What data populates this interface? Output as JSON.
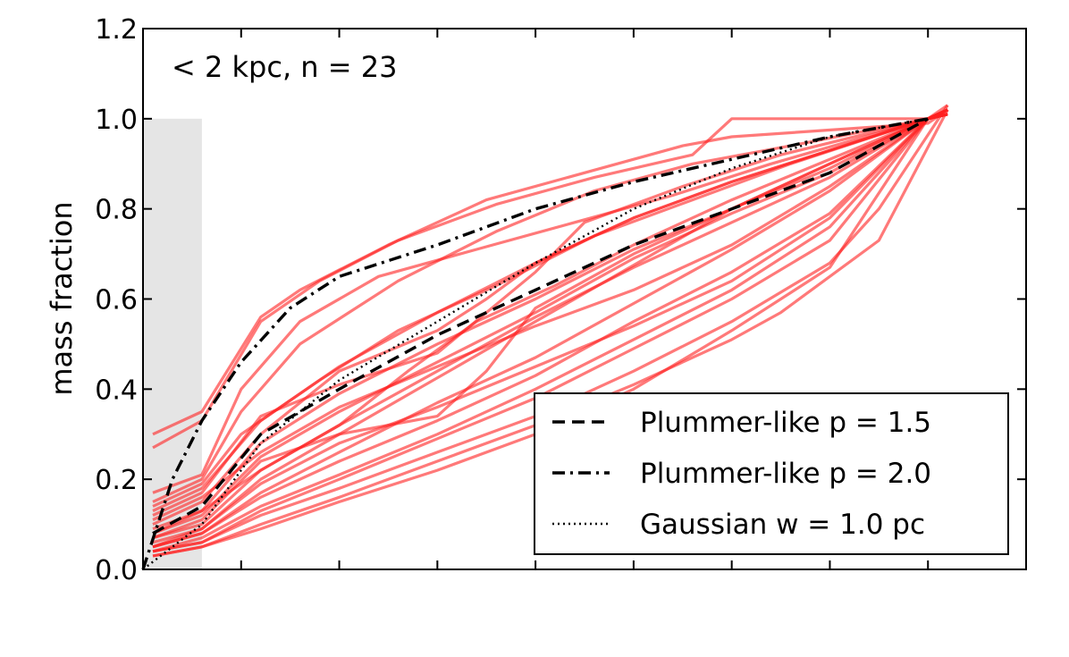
{
  "chart_data": {
    "type": "line",
    "xlabel": "",
    "ylabel": "mass fraction",
    "annotation": "< 2 kpc, n = 23",
    "xlim": [
      0,
      9
    ],
    "ylim": [
      0.0,
      1.2
    ],
    "yticks": [
      "0.0",
      "0.2",
      "0.4",
      "0.6",
      "0.8",
      "1.0",
      "1.2"
    ],
    "xticks": [
      0,
      1,
      2,
      3,
      4,
      5,
      6,
      7,
      8,
      9
    ],
    "grid": false,
    "legend_position": "lower-right",
    "shaded_region": {
      "x": [
        0,
        0.6
      ],
      "y": [
        0,
        1.0
      ],
      "color": "#e5e5e5"
    },
    "model_series": [
      {
        "name": "Plummer-like p = 1.5",
        "style": "dashed",
        "x": [
          0.1,
          0.6,
          1.2,
          2.0,
          3.0,
          4.0,
          5.0,
          6.0,
          7.0,
          8.0
        ],
        "y": [
          0.08,
          0.14,
          0.3,
          0.4,
          0.52,
          0.62,
          0.72,
          0.8,
          0.88,
          1.0
        ]
      },
      {
        "name": "Plummer-like p = 2.0",
        "style": "dashdot",
        "x": [
          0.0,
          0.3,
          0.6,
          1.0,
          1.5,
          2.0,
          3.0,
          4.0,
          5.0,
          6.0,
          7.0,
          8.0
        ],
        "y": [
          0.0,
          0.2,
          0.33,
          0.46,
          0.58,
          0.65,
          0.72,
          0.8,
          0.86,
          0.91,
          0.96,
          1.0
        ]
      },
      {
        "name": "Gaussian w = 1.0 pc",
        "style": "dotted",
        "x": [
          0.0,
          0.6,
          1.2,
          2.0,
          3.0,
          4.0,
          5.0,
          6.0,
          7.0,
          8.0
        ],
        "y": [
          0.0,
          0.1,
          0.28,
          0.42,
          0.55,
          0.68,
          0.8,
          0.89,
          0.96,
          1.0
        ]
      }
    ],
    "data_series_color": "#ff2020",
    "data_series": [
      {
        "x": [
          0.1,
          0.6,
          1.2,
          1.6,
          2.5,
          3.5,
          4.5,
          5.5,
          6.0,
          8.0,
          8.2
        ],
        "y": [
          0.3,
          0.35,
          0.56,
          0.62,
          0.72,
          0.82,
          0.88,
          0.94,
          0.96,
          0.99,
          1.02
        ]
      },
      {
        "x": [
          0.1,
          0.6,
          1.2,
          1.8,
          2.6,
          3.6,
          4.6,
          5.6,
          6.0,
          8.0,
          8.2
        ],
        "y": [
          0.27,
          0.33,
          0.55,
          0.64,
          0.73,
          0.81,
          0.87,
          0.92,
          1.0,
          1.0,
          1.01
        ]
      },
      {
        "x": [
          0.1,
          0.6,
          1.0,
          1.6,
          2.4,
          3.4,
          4.4,
          5.4,
          6.4,
          8.0,
          8.2
        ],
        "y": [
          0.17,
          0.21,
          0.4,
          0.55,
          0.65,
          0.71,
          0.77,
          0.83,
          0.9,
          1.0,
          1.02
        ]
      },
      {
        "x": [
          0.1,
          0.6,
          1.0,
          1.6,
          2.6,
          3.6,
          4.6,
          5.6,
          6.6,
          8.0,
          8.2
        ],
        "y": [
          0.15,
          0.2,
          0.35,
          0.5,
          0.64,
          0.75,
          0.84,
          0.9,
          0.94,
          1.0,
          1.02
        ]
      },
      {
        "x": [
          0.1,
          0.6,
          1.2,
          2.0,
          3.0,
          4.0,
          5.0,
          6.0,
          7.0,
          8.0,
          8.2
        ],
        "y": [
          0.13,
          0.18,
          0.33,
          0.45,
          0.57,
          0.68,
          0.78,
          0.86,
          0.93,
          1.0,
          1.01
        ]
      },
      {
        "x": [
          0.1,
          0.6,
          1.2,
          2.0,
          3.0,
          4.0,
          4.5,
          5.5,
          6.5,
          8.0,
          8.2
        ],
        "y": [
          0.12,
          0.17,
          0.34,
          0.41,
          0.48,
          0.66,
          0.77,
          0.85,
          0.92,
          1.0,
          1.02
        ]
      },
      {
        "x": [
          0.1,
          0.6,
          1.2,
          2.0,
          3.0,
          3.5,
          4.0,
          5.0,
          6.0,
          8.0,
          8.2
        ],
        "y": [
          0.1,
          0.15,
          0.3,
          0.44,
          0.53,
          0.6,
          0.68,
          0.78,
          0.86,
          1.0,
          1.01
        ]
      },
      {
        "x": [
          0.1,
          0.6,
          1.2,
          2.0,
          3.0,
          4.0,
          5.0,
          6.0,
          7.0,
          8.0,
          8.2
        ],
        "y": [
          0.09,
          0.13,
          0.28,
          0.39,
          0.5,
          0.6,
          0.71,
          0.8,
          0.89,
          1.0,
          1.02
        ]
      },
      {
        "x": [
          0.1,
          0.6,
          1.2,
          2.0,
          3.0,
          4.0,
          5.0,
          6.0,
          7.0,
          8.0,
          8.2
        ],
        "y": [
          0.08,
          0.12,
          0.25,
          0.35,
          0.46,
          0.57,
          0.69,
          0.79,
          0.88,
          1.0,
          1.01
        ]
      },
      {
        "x": [
          0.1,
          0.6,
          1.2,
          2.0,
          3.0,
          4.0,
          5.0,
          6.0,
          7.0,
          8.0,
          8.2
        ],
        "y": [
          0.07,
          0.1,
          0.22,
          0.32,
          0.44,
          0.56,
          0.67,
          0.77,
          0.87,
          1.0,
          1.02
        ]
      },
      {
        "x": [
          0.1,
          0.6,
          1.2,
          2.0,
          2.8,
          3.6,
          4.4,
          5.2,
          6.0,
          8.0,
          8.2
        ],
        "y": [
          0.06,
          0.09,
          0.2,
          0.3,
          0.4,
          0.5,
          0.6,
          0.7,
          0.8,
          1.0,
          1.01
        ]
      },
      {
        "x": [
          0.1,
          0.6,
          1.2,
          2.0,
          3.0,
          4.0,
          5.0,
          6.0,
          7.0,
          8.0,
          8.2
        ],
        "y": [
          0.05,
          0.08,
          0.17,
          0.26,
          0.37,
          0.47,
          0.59,
          0.71,
          0.84,
          1.0,
          1.02
        ]
      },
      {
        "x": [
          0.1,
          0.6,
          1.2,
          2.0,
          3.0,
          4.0,
          5.0,
          6.0,
          7.0,
          8.0,
          8.2
        ],
        "y": [
          0.05,
          0.08,
          0.16,
          0.24,
          0.33,
          0.43,
          0.55,
          0.66,
          0.79,
          1.0,
          1.01
        ]
      },
      {
        "x": [
          0.1,
          0.6,
          1.2,
          2.0,
          3.0,
          4.0,
          5.0,
          6.0,
          7.0,
          8.0,
          8.2
        ],
        "y": [
          0.04,
          0.07,
          0.14,
          0.21,
          0.3,
          0.4,
          0.51,
          0.62,
          0.76,
          1.0,
          1.03
        ]
      },
      {
        "x": [
          0.1,
          0.6,
          1.2,
          2.0,
          3.0,
          4.0,
          5.0,
          6.0,
          7.0,
          8.0,
          8.2
        ],
        "y": [
          0.04,
          0.06,
          0.13,
          0.2,
          0.29,
          0.38,
          0.49,
          0.6,
          0.73,
          1.0,
          1.02
        ]
      },
      {
        "x": [
          0.1,
          0.6,
          1.2,
          2.0,
          3.0,
          4.0,
          5.0,
          6.0,
          7.0,
          7.5,
          8.2
        ],
        "y": [
          0.04,
          0.06,
          0.12,
          0.18,
          0.26,
          0.34,
          0.44,
          0.55,
          0.68,
          0.8,
          1.03
        ]
      },
      {
        "x": [
          0.1,
          0.6,
          1.2,
          2.0,
          3.0,
          4.0,
          5.0,
          6.0,
          6.5,
          7.5,
          8.2
        ],
        "y": [
          0.03,
          0.05,
          0.1,
          0.16,
          0.24,
          0.32,
          0.41,
          0.51,
          0.57,
          0.73,
          1.02
        ]
      },
      {
        "x": [
          0.1,
          0.6,
          1.2,
          2.0,
          3.0,
          4.0,
          5.0,
          6.0,
          7.0,
          8.0,
          8.2
        ],
        "y": [
          0.03,
          0.05,
          0.09,
          0.15,
          0.22,
          0.3,
          0.4,
          0.53,
          0.67,
          1.0,
          1.02
        ]
      },
      {
        "x": [
          0.1,
          0.6,
          1.2,
          2.0,
          3.0,
          3.5,
          4.0,
          5.0,
          6.0,
          8.0,
          8.2
        ],
        "y": [
          0.07,
          0.11,
          0.24,
          0.3,
          0.34,
          0.44,
          0.58,
          0.7,
          0.8,
          1.0,
          1.01
        ]
      },
      {
        "x": [
          0.1,
          0.6,
          1.2,
          2.0,
          2.7,
          3.4,
          4.2,
          5.0,
          6.0,
          8.0,
          8.2
        ],
        "y": [
          0.08,
          0.13,
          0.22,
          0.32,
          0.44,
          0.55,
          0.63,
          0.72,
          0.82,
          1.0,
          1.02
        ]
      },
      {
        "x": [
          0.1,
          0.6,
          1.0,
          1.8,
          2.6,
          3.6,
          4.6,
          5.6,
          6.6,
          8.0,
          8.2
        ],
        "y": [
          0.14,
          0.19,
          0.3,
          0.42,
          0.53,
          0.63,
          0.74,
          0.82,
          0.9,
          1.0,
          1.01
        ]
      },
      {
        "x": [
          0.1,
          0.6,
          1.2,
          2.0,
          3.0,
          4.0,
          5.0,
          6.0,
          7.0,
          8.0,
          8.2
        ],
        "y": [
          0.11,
          0.16,
          0.26,
          0.36,
          0.45,
          0.54,
          0.62,
          0.72,
          0.85,
          1.0,
          1.02
        ]
      },
      {
        "x": [
          0.1,
          0.6,
          1.2,
          2.0,
          3.0,
          4.0,
          5.0,
          6.0,
          7.0,
          8.0,
          8.2
        ],
        "y": [
          0.05,
          0.09,
          0.19,
          0.28,
          0.36,
          0.45,
          0.54,
          0.64,
          0.78,
          1.0,
          1.01
        ]
      }
    ]
  }
}
